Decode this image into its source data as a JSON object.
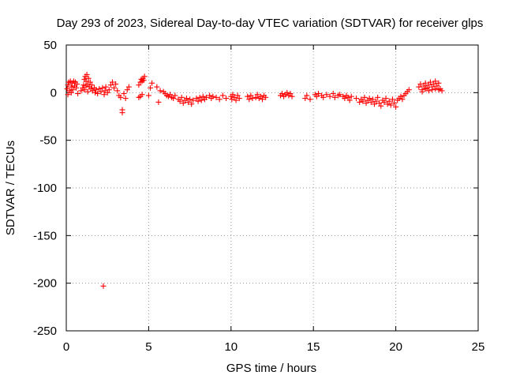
{
  "chart_data": {
    "type": "scatter",
    "title": "Day 293 of 2023, Sidereal Day-to-day VTEC variation (SDTVAR) for receiver glps",
    "xlabel": "GPS time / hours",
    "ylabel": "SDTVAR / TECUs",
    "xlim": [
      0,
      25
    ],
    "ylim": [
      -250,
      50
    ],
    "xticks": [
      0,
      5,
      10,
      15,
      20,
      25
    ],
    "yticks": [
      50,
      0,
      -50,
      -100,
      -150,
      -200,
      -250
    ],
    "grid": true,
    "marker": "+",
    "color": "#ff0000",
    "series": [
      {
        "name": "SDTVAR",
        "points": [
          [
            0.05,
            4
          ],
          [
            0.1,
            8
          ],
          [
            0.15,
            11
          ],
          [
            0.2,
            2
          ],
          [
            0.25,
            12
          ],
          [
            0.3,
            6
          ],
          [
            0.35,
            10
          ],
          [
            0.4,
            3
          ],
          [
            0.45,
            12
          ],
          [
            0.5,
            7
          ],
          [
            0.55,
            11
          ],
          [
            0.6,
            5
          ],
          [
            0.65,
            9
          ],
          [
            0.7,
            -1
          ],
          [
            0.1,
            -2
          ],
          [
            0.3,
            0
          ],
          [
            0.9,
            2
          ],
          [
            1.0,
            5
          ],
          [
            1.05,
            8
          ],
          [
            1.1,
            14
          ],
          [
            1.15,
            17
          ],
          [
            1.2,
            12
          ],
          [
            1.25,
            19
          ],
          [
            1.3,
            9
          ],
          [
            1.35,
            15
          ],
          [
            1.4,
            6
          ],
          [
            1.1,
            3
          ],
          [
            1.2,
            7
          ],
          [
            1.3,
            1
          ],
          [
            1.45,
            11
          ],
          [
            1.5,
            4
          ],
          [
            1.55,
            8
          ],
          [
            1.6,
            2
          ],
          [
            1.7,
            5
          ],
          [
            1.75,
            0
          ],
          [
            1.8,
            3
          ],
          [
            1.9,
            -1
          ],
          [
            2.0,
            4
          ],
          [
            2.1,
            1
          ],
          [
            2.2,
            5
          ],
          [
            2.3,
            -2
          ],
          [
            2.35,
            2
          ],
          [
            2.4,
            6
          ],
          [
            2.5,
            0
          ],
          [
            2.6,
            3
          ],
          [
            2.7,
            8
          ],
          [
            2.8,
            11
          ],
          [
            2.9,
            5
          ],
          [
            3.0,
            9
          ],
          [
            3.1,
            2
          ],
          [
            3.2,
            -3
          ],
          [
            3.3,
            -5
          ],
          [
            3.4,
            -18
          ],
          [
            3.4,
            -21
          ],
          [
            3.5,
            -1
          ],
          [
            3.6,
            -6
          ],
          [
            3.7,
            3
          ],
          [
            3.8,
            6
          ],
          [
            2.25,
            -203
          ],
          [
            4.4,
            8
          ],
          [
            4.5,
            11
          ],
          [
            4.55,
            14
          ],
          [
            4.6,
            12
          ],
          [
            4.65,
            15
          ],
          [
            4.7,
            13
          ],
          [
            4.75,
            17
          ],
          [
            4.5,
            -4
          ],
          [
            4.6,
            -2
          ],
          [
            4.4,
            -5
          ],
          [
            5.0,
            -3
          ],
          [
            5.1,
            5
          ],
          [
            5.2,
            10
          ],
          [
            5.5,
            6
          ],
          [
            5.6,
            -10
          ],
          [
            5.7,
            2
          ],
          [
            5.9,
            1
          ],
          [
            6.0,
            -1
          ],
          [
            6.1,
            -3
          ],
          [
            6.2,
            -4
          ],
          [
            6.3,
            -2
          ],
          [
            6.4,
            -5
          ],
          [
            6.5,
            -6
          ],
          [
            6.6,
            -3
          ],
          [
            6.8,
            -7
          ],
          [
            6.9,
            -9
          ],
          [
            7.0,
            -5
          ],
          [
            7.1,
            -11
          ],
          [
            7.2,
            -8
          ],
          [
            7.3,
            -6
          ],
          [
            7.4,
            -10
          ],
          [
            7.5,
            -7
          ],
          [
            7.6,
            -12
          ],
          [
            7.7,
            -8
          ],
          [
            7.9,
            -6
          ],
          [
            8.0,
            -9
          ],
          [
            8.1,
            -5
          ],
          [
            8.2,
            -8
          ],
          [
            8.3,
            -4
          ],
          [
            8.4,
            -7
          ],
          [
            8.5,
            -5
          ],
          [
            8.7,
            -3
          ],
          [
            8.8,
            -6
          ],
          [
            8.9,
            -4
          ],
          [
            9.1,
            -5
          ],
          [
            9.3,
            -7
          ],
          [
            9.5,
            -3
          ],
          [
            9.7,
            -6
          ],
          [
            10.0,
            -4
          ],
          [
            10.05,
            -7
          ],
          [
            10.1,
            -2
          ],
          [
            10.2,
            -5
          ],
          [
            10.3,
            -8
          ],
          [
            10.4,
            -3
          ],
          [
            10.5,
            -6
          ],
          [
            11.0,
            -4
          ],
          [
            11.1,
            -7
          ],
          [
            11.2,
            -3
          ],
          [
            11.3,
            -6
          ],
          [
            11.5,
            -5
          ],
          [
            11.6,
            -2
          ],
          [
            11.7,
            -6
          ],
          [
            11.8,
            -4
          ],
          [
            11.9,
            -7
          ],
          [
            12.0,
            -3
          ],
          [
            12.1,
            -5
          ],
          [
            13.0,
            -3
          ],
          [
            13.1,
            -1
          ],
          [
            13.2,
            -4
          ],
          [
            13.3,
            -2
          ],
          [
            13.4,
            0
          ],
          [
            13.5,
            -3
          ],
          [
            13.6,
            -1
          ],
          [
            13.7,
            -4
          ],
          [
            14.5,
            -6
          ],
          [
            14.6,
            -3
          ],
          [
            14.8,
            -7
          ],
          [
            15.1,
            -2
          ],
          [
            15.2,
            -4
          ],
          [
            15.3,
            -1
          ],
          [
            15.5,
            -3
          ],
          [
            15.6,
            -5
          ],
          [
            15.8,
            -2
          ],
          [
            16.0,
            -4
          ],
          [
            16.2,
            -1
          ],
          [
            16.3,
            -5
          ],
          [
            16.5,
            -3
          ],
          [
            16.6,
            -2
          ],
          [
            16.8,
            -4
          ],
          [
            16.9,
            -6
          ],
          [
            17.0,
            -3
          ],
          [
            17.1,
            -5
          ],
          [
            17.2,
            -8
          ],
          [
            17.3,
            -4
          ],
          [
            17.6,
            -6
          ],
          [
            17.8,
            -10
          ],
          [
            17.9,
            -7
          ],
          [
            18.0,
            -9
          ],
          [
            18.1,
            -5
          ],
          [
            18.2,
            -11
          ],
          [
            18.3,
            -8
          ],
          [
            18.4,
            -6
          ],
          [
            18.5,
            -10
          ],
          [
            18.6,
            -7
          ],
          [
            18.7,
            -12
          ],
          [
            18.8,
            -9
          ],
          [
            18.9,
            -5
          ],
          [
            19.0,
            -11
          ],
          [
            19.1,
            -14
          ],
          [
            19.2,
            -8
          ],
          [
            19.3,
            -10
          ],
          [
            19.4,
            -6
          ],
          [
            19.5,
            -12
          ],
          [
            19.6,
            -9
          ],
          [
            19.7,
            -13
          ],
          [
            19.8,
            -7
          ],
          [
            19.9,
            -11
          ],
          [
            20.0,
            -15
          ],
          [
            20.1,
            -8
          ],
          [
            20.2,
            -6
          ],
          [
            20.3,
            -4
          ],
          [
            20.4,
            -7
          ],
          [
            20.5,
            -3
          ],
          [
            20.6,
            -1
          ],
          [
            20.7,
            1
          ],
          [
            20.8,
            3
          ],
          [
            21.4,
            6
          ],
          [
            21.5,
            9
          ],
          [
            21.6,
            3
          ],
          [
            21.7,
            7
          ],
          [
            21.8,
            10
          ],
          [
            21.9,
            5
          ],
          [
            22.0,
            8
          ],
          [
            22.1,
            11
          ],
          [
            22.2,
            6
          ],
          [
            22.3,
            9
          ],
          [
            22.4,
            12
          ],
          [
            22.5,
            7
          ],
          [
            22.6,
            10
          ],
          [
            22.7,
            4
          ],
          [
            22.8,
            2
          ],
          [
            21.6,
            1
          ],
          [
            21.8,
            4
          ],
          [
            22.0,
            2
          ],
          [
            22.2,
            3
          ],
          [
            22.4,
            4
          ],
          [
            22.6,
            3
          ]
        ]
      }
    ]
  }
}
